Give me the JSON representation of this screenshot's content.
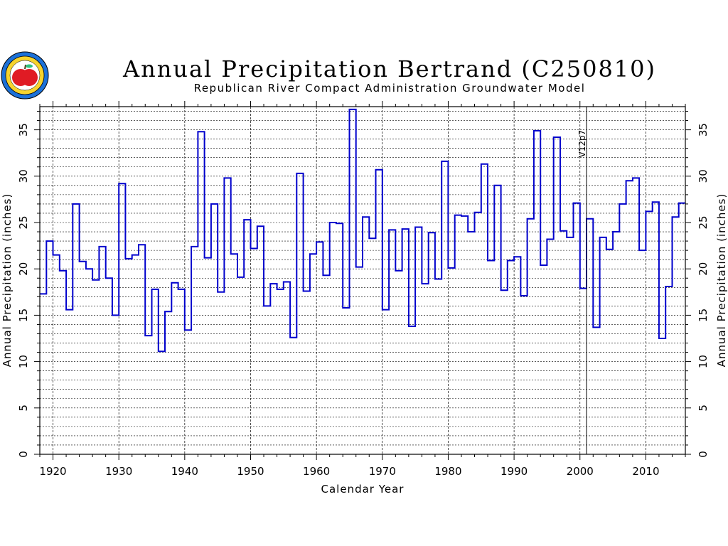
{
  "chart_data": {
    "type": "line",
    "style": "step",
    "title": "Annual Precipitation Bertrand (C250810)",
    "subtitle": "Republican River Compact Administration Groundwater Model",
    "xlabel": "Calendar Year",
    "ylabel": "Annual Precipitation (inches)",
    "ylabel_right": "Annual Precipitation (inches)",
    "xlim": [
      1918,
      2016
    ],
    "ylim": [
      0,
      37.5
    ],
    "x_ticks": [
      1920,
      1930,
      1940,
      1950,
      1960,
      1970,
      1980,
      1990,
      2000,
      2010
    ],
    "y_ticks": [
      0,
      5,
      10,
      15,
      20,
      25,
      30,
      35
    ],
    "grid": true,
    "line_color": "#0000cc",
    "annotation": {
      "text": "V12p7",
      "x": 2001
    },
    "series": [
      {
        "x": [
          1918,
          1919,
          1920,
          1921,
          1922,
          1923,
          1924,
          1925,
          1926,
          1927,
          1928,
          1929,
          1930,
          1931,
          1932,
          1933,
          1934,
          1935,
          1936,
          1937,
          1938,
          1939,
          1940,
          1941,
          1942,
          1943,
          1944,
          1945,
          1946,
          1947,
          1948,
          1949,
          1950,
          1951,
          1952,
          1953,
          1954,
          1955,
          1956,
          1957,
          1958,
          1959,
          1960,
          1961,
          1962,
          1963,
          1964,
          1965,
          1966,
          1967,
          1968,
          1969,
          1970,
          1971,
          1972,
          1973,
          1974,
          1975,
          1976,
          1977,
          1978,
          1979,
          1980,
          1981,
          1982,
          1983,
          1984,
          1985,
          1986,
          1987,
          1988,
          1989,
          1990,
          1991,
          1992,
          1993,
          1994,
          1995,
          1996,
          1997,
          1998,
          1999,
          2000,
          2001,
          2002,
          2003,
          2004,
          2005,
          2006,
          2007,
          2008,
          2009,
          2010,
          2011,
          2012,
          2013,
          2014,
          2015
        ],
        "values": [
          17.3,
          23.0,
          21.5,
          19.8,
          15.6,
          27.0,
          20.8,
          20.0,
          18.8,
          22.4,
          19.0,
          15.0,
          29.2,
          21.1,
          21.5,
          22.6,
          12.8,
          17.8,
          11.1,
          15.4,
          18.5,
          17.8,
          13.4,
          22.4,
          34.8,
          21.2,
          27.0,
          17.5,
          29.8,
          21.6,
          19.1,
          25.3,
          22.2,
          24.6,
          16.0,
          18.4,
          17.8,
          18.6,
          12.6,
          30.3,
          17.6,
          21.6,
          22.9,
          19.3,
          25.0,
          24.9,
          15.8,
          37.2,
          20.2,
          25.6,
          23.3,
          30.7,
          15.6,
          24.2,
          19.8,
          24.3,
          13.8,
          24.5,
          18.4,
          23.9,
          18.9,
          31.6,
          20.1,
          25.8,
          25.7,
          24.0,
          26.1,
          31.3,
          20.9,
          29.0,
          17.7,
          20.9,
          21.3,
          17.1,
          25.4,
          34.9,
          20.4,
          23.2,
          34.2,
          24.1,
          23.4,
          27.1,
          17.9,
          25.4,
          13.7,
          23.4,
          22.1,
          24.0,
          27.0,
          29.5,
          29.8,
          22.0,
          26.2,
          27.2,
          12.5,
          18.1,
          25.6,
          27.1
        ]
      }
    ]
  },
  "logo": {
    "name": "rrca-seal-logo",
    "colors": [
      "#1a5fb4",
      "#f6d32d",
      "#e01b24",
      "#33a02c"
    ]
  }
}
